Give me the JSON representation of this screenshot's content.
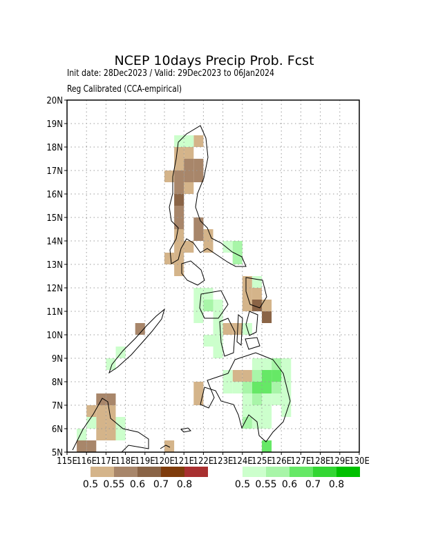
{
  "map": {
    "title": "NCEP 10days Precip Prob. Fcst",
    "subtitle": "Init date: 28Dec2023 / Valid: 29Dec2023 to 06Jan2024",
    "method": "Reg Calibrated (CCA-empirical)",
    "xlim": [
      115,
      130
    ],
    "ylim": [
      5,
      20
    ],
    "cell_size": 0.5,
    "grid": true,
    "xticks": [
      {
        "value": 115,
        "label": "115E"
      },
      {
        "value": 116,
        "label": "116E"
      },
      {
        "value": 117,
        "label": "117E"
      },
      {
        "value": 118,
        "label": "118E"
      },
      {
        "value": 119,
        "label": "119E"
      },
      {
        "value": 120,
        "label": "120E"
      },
      {
        "value": 121,
        "label": "121E"
      },
      {
        "value": 122,
        "label": "122E"
      },
      {
        "value": 123,
        "label": "123E"
      },
      {
        "value": 124,
        "label": "124E"
      },
      {
        "value": 125,
        "label": "125E"
      },
      {
        "value": 126,
        "label": "126E"
      },
      {
        "value": 127,
        "label": "127E"
      },
      {
        "value": 128,
        "label": "128E"
      },
      {
        "value": 129,
        "label": "129E"
      },
      {
        "value": 130,
        "label": "130E"
      }
    ],
    "yticks": [
      {
        "value": 5,
        "label": "5N"
      },
      {
        "value": 6,
        "label": "6N"
      },
      {
        "value": 7,
        "label": "7N"
      },
      {
        "value": 8,
        "label": "8N"
      },
      {
        "value": 9,
        "label": "9N"
      },
      {
        "value": 10,
        "label": "10N"
      },
      {
        "value": 11,
        "label": "11N"
      },
      {
        "value": 12,
        "label": "12N"
      },
      {
        "value": 13,
        "label": "13N"
      },
      {
        "value": 14,
        "label": "14N"
      },
      {
        "value": 15,
        "label": "15N"
      },
      {
        "value": 16,
        "label": "16N"
      },
      {
        "value": 17,
        "label": "17N"
      },
      {
        "value": 18,
        "label": "18N"
      },
      {
        "value": 19,
        "label": "19N"
      },
      {
        "value": 20,
        "label": "20N"
      }
    ],
    "dry_legend": {
      "levels": [
        0.5,
        0.55,
        0.6,
        0.7,
        0.8
      ],
      "colors": [
        "#d4b48a",
        "#a8866a",
        "#8a6446",
        "#7f3c0c",
        "#a83030"
      ]
    },
    "wet_legend": {
      "levels": [
        0.5,
        0.55,
        0.6,
        0.7,
        0.8
      ],
      "colors": [
        "#ccffcc",
        "#a8f5a8",
        "#66e866",
        "#33d633",
        "#00c000"
      ]
    },
    "dry_cells": [
      [
        121.5,
        18,
        0.5
      ],
      [
        120.5,
        17.5,
        0.5
      ],
      [
        121,
        17.5,
        0.5
      ],
      [
        120.5,
        17,
        0.5
      ],
      [
        121,
        17,
        0.55
      ],
      [
        121.5,
        17,
        0.55
      ],
      [
        120,
        16.5,
        0.5
      ],
      [
        120.5,
        16.5,
        0.55
      ],
      [
        121,
        16.5,
        0.55
      ],
      [
        121.5,
        16.5,
        0.55
      ],
      [
        120.5,
        16,
        0.55
      ],
      [
        121,
        16,
        0.5
      ],
      [
        120.5,
        15.5,
        0.6
      ],
      [
        120.5,
        15,
        0.55
      ],
      [
        120.5,
        14.5,
        0.55
      ],
      [
        121.5,
        14.5,
        0.55
      ],
      [
        120.5,
        14,
        0.5
      ],
      [
        121.5,
        14,
        0.55
      ],
      [
        122,
        14,
        0.5
      ],
      [
        120.5,
        13.5,
        0.5
      ],
      [
        121,
        13.5,
        0.5
      ],
      [
        122,
        13.5,
        0.5
      ],
      [
        120,
        13,
        0.5
      ],
      [
        120.5,
        13,
        0.5
      ],
      [
        120.5,
        12.5,
        0.5
      ],
      [
        124,
        12,
        0.5
      ],
      [
        124,
        11.5,
        0.5
      ],
      [
        124.5,
        11.5,
        0.5
      ],
      [
        124,
        11,
        0.5
      ],
      [
        124.5,
        11,
        0.6
      ],
      [
        125,
        11,
        0.5
      ],
      [
        125,
        10.5,
        0.6
      ],
      [
        123,
        10,
        0.5
      ],
      [
        123.5,
        10,
        0.5
      ],
      [
        118.5,
        10,
        0.55
      ],
      [
        123.5,
        8,
        0.5
      ],
      [
        124,
        8,
        0.5
      ],
      [
        121.5,
        7.5,
        0.5
      ],
      [
        121.5,
        7,
        0.5
      ],
      [
        116.5,
        7,
        0.55
      ],
      [
        117,
        7,
        0.55
      ],
      [
        116,
        6.5,
        0.5
      ],
      [
        116.5,
        6.5,
        0.5
      ],
      [
        117,
        6.5,
        0.5
      ],
      [
        116.5,
        6,
        0.5
      ],
      [
        117,
        6,
        0.5
      ],
      [
        116.5,
        5.5,
        0.5
      ],
      [
        117,
        5.5,
        0.5
      ],
      [
        120,
        5,
        0.5
      ],
      [
        115.5,
        5,
        0.55
      ],
      [
        116,
        5,
        0.55
      ]
    ],
    "wet_cells": [
      [
        120.5,
        18,
        0.5
      ],
      [
        121,
        18,
        0.5
      ],
      [
        123,
        13.5,
        0.5
      ],
      [
        123.5,
        13.5,
        0.55
      ],
      [
        123.5,
        13,
        0.55
      ],
      [
        124.5,
        12,
        0.5
      ],
      [
        121.5,
        11.5,
        0.5
      ],
      [
        122,
        11.5,
        0.5
      ],
      [
        121.5,
        11,
        0.5
      ],
      [
        122,
        11,
        0.55
      ],
      [
        122.5,
        11,
        0.5
      ],
      [
        121.5,
        10.5,
        0.5
      ],
      [
        122.5,
        10.5,
        0.5
      ],
      [
        122.5,
        10,
        0.5
      ],
      [
        124,
        10,
        0.5
      ],
      [
        122,
        9.5,
        0.5
      ],
      [
        122.5,
        9.5,
        0.5
      ],
      [
        122.5,
        9,
        0.5
      ],
      [
        117.5,
        9,
        0.5
      ],
      [
        117,
        8.5,
        0.5
      ],
      [
        124.5,
        8.5,
        0.5
      ],
      [
        125,
        8.5,
        0.5
      ],
      [
        125.5,
        8.5,
        0.55
      ],
      [
        126,
        8.5,
        0.5
      ],
      [
        123,
        8,
        0.5
      ],
      [
        124.5,
        8,
        0.55
      ],
      [
        125,
        8,
        0.6
      ],
      [
        125.5,
        8,
        0.6
      ],
      [
        126,
        8,
        0.5
      ],
      [
        123,
        7.5,
        0.5
      ],
      [
        123.5,
        7.5,
        0.5
      ],
      [
        124,
        7.5,
        0.55
      ],
      [
        124.5,
        7.5,
        0.6
      ],
      [
        125,
        7.5,
        0.6
      ],
      [
        125.5,
        7.5,
        0.55
      ],
      [
        126,
        7.5,
        0.5
      ],
      [
        124,
        7,
        0.5
      ],
      [
        124.5,
        7,
        0.55
      ],
      [
        125,
        7,
        0.5
      ],
      [
        125.5,
        7,
        0.5
      ],
      [
        126,
        7,
        0.5
      ],
      [
        124,
        6.5,
        0.5
      ],
      [
        124.5,
        6.5,
        0.5
      ],
      [
        125,
        6.5,
        0.5
      ],
      [
        126,
        6.5,
        0.5
      ],
      [
        124,
        6,
        0.55
      ],
      [
        124.5,
        6,
        0.5
      ],
      [
        125,
        6,
        0.5
      ],
      [
        116,
        6,
        0.5
      ],
      [
        117.5,
        6,
        0.5
      ],
      [
        115.5,
        5.5,
        0.5
      ],
      [
        117.5,
        5.5,
        0.5
      ],
      [
        125,
        5,
        0.6
      ]
    ]
  }
}
